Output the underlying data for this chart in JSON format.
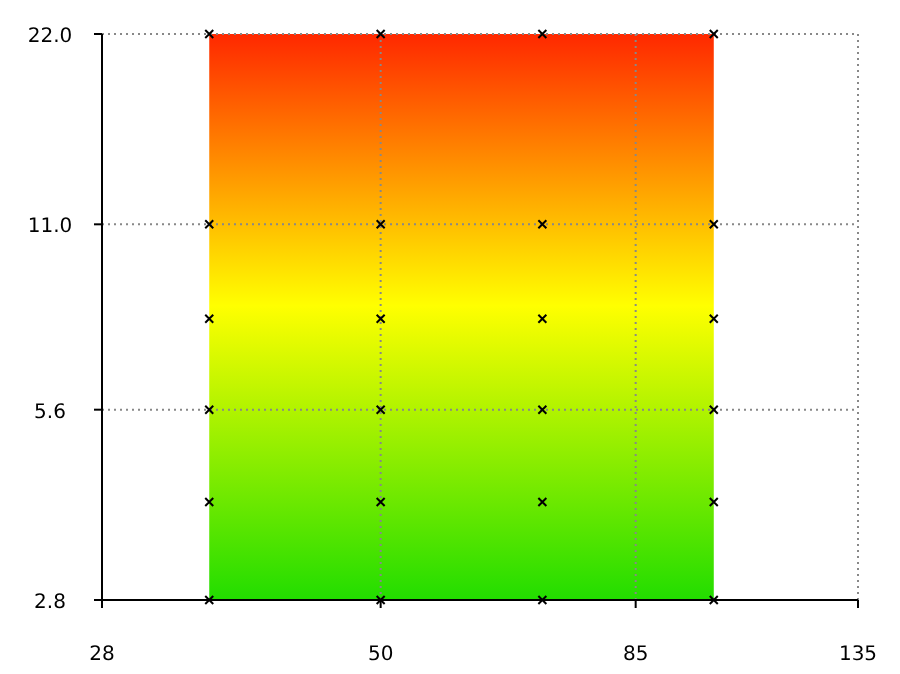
{
  "chart_data": {
    "type": "scatter",
    "log": "xy",
    "bands": [
      {
        "axis": "x",
        "from": 35,
        "to": 100
      }
    ],
    "grid": true,
    "marker": "cross",
    "xlim": [
      28,
      135
    ],
    "xticks": [
      28,
      50,
      85,
      135
    ],
    "ylim": [
      2.8,
      22.0
    ],
    "yticks": [
      {
        "value": 2.8,
        "label": "2.8"
      },
      {
        "value": 5.6,
        "label": "5.6"
      },
      {
        "value": 11.0,
        "label": "11.0"
      },
      {
        "value": 22.0,
        "label": "22.0"
      }
    ],
    "series": [
      {
        "color": "#000000",
        "x": [
          35,
          35,
          35,
          35,
          35,
          35,
          50,
          50,
          50,
          50,
          50,
          50,
          70,
          70,
          70,
          70,
          70,
          70,
          100,
          100,
          100,
          100,
          100,
          100
        ],
        "values": [
          2.8,
          4.0,
          5.6,
          7.8,
          11.0,
          22.0,
          2.8,
          4.0,
          5.6,
          7.8,
          11.0,
          22.0,
          2.8,
          4.0,
          5.6,
          7.8,
          11.0,
          22.0,
          2.8,
          4.0,
          5.6,
          7.8,
          11.0,
          22.0
        ]
      }
    ]
  }
}
